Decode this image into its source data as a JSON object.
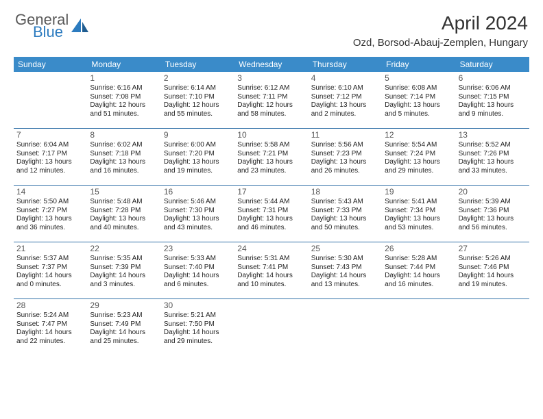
{
  "logo": {
    "text1": "General",
    "text2": "Blue"
  },
  "title": "April 2024",
  "location": "Ozd, Borsod-Abauj-Zemplen, Hungary",
  "colors": {
    "header_bg": "#3a8bc9",
    "week_divider": "#2f6fa6",
    "logo_gray": "#5a5a5a",
    "logo_blue": "#2c7bbf"
  },
  "dow": [
    "Sunday",
    "Monday",
    "Tuesday",
    "Wednesday",
    "Thursday",
    "Friday",
    "Saturday"
  ],
  "weeks": [
    [
      {
        "n": "",
        "sr": "",
        "ss": "",
        "dl": ""
      },
      {
        "n": "1",
        "sr": "Sunrise: 6:16 AM",
        "ss": "Sunset: 7:08 PM",
        "dl": "Daylight: 12 hours and 51 minutes."
      },
      {
        "n": "2",
        "sr": "Sunrise: 6:14 AM",
        "ss": "Sunset: 7:10 PM",
        "dl": "Daylight: 12 hours and 55 minutes."
      },
      {
        "n": "3",
        "sr": "Sunrise: 6:12 AM",
        "ss": "Sunset: 7:11 PM",
        "dl": "Daylight: 12 hours and 58 minutes."
      },
      {
        "n": "4",
        "sr": "Sunrise: 6:10 AM",
        "ss": "Sunset: 7:12 PM",
        "dl": "Daylight: 13 hours and 2 minutes."
      },
      {
        "n": "5",
        "sr": "Sunrise: 6:08 AM",
        "ss": "Sunset: 7:14 PM",
        "dl": "Daylight: 13 hours and 5 minutes."
      },
      {
        "n": "6",
        "sr": "Sunrise: 6:06 AM",
        "ss": "Sunset: 7:15 PM",
        "dl": "Daylight: 13 hours and 9 minutes."
      }
    ],
    [
      {
        "n": "7",
        "sr": "Sunrise: 6:04 AM",
        "ss": "Sunset: 7:17 PM",
        "dl": "Daylight: 13 hours and 12 minutes."
      },
      {
        "n": "8",
        "sr": "Sunrise: 6:02 AM",
        "ss": "Sunset: 7:18 PM",
        "dl": "Daylight: 13 hours and 16 minutes."
      },
      {
        "n": "9",
        "sr": "Sunrise: 6:00 AM",
        "ss": "Sunset: 7:20 PM",
        "dl": "Daylight: 13 hours and 19 minutes."
      },
      {
        "n": "10",
        "sr": "Sunrise: 5:58 AM",
        "ss": "Sunset: 7:21 PM",
        "dl": "Daylight: 13 hours and 23 minutes."
      },
      {
        "n": "11",
        "sr": "Sunrise: 5:56 AM",
        "ss": "Sunset: 7:23 PM",
        "dl": "Daylight: 13 hours and 26 minutes."
      },
      {
        "n": "12",
        "sr": "Sunrise: 5:54 AM",
        "ss": "Sunset: 7:24 PM",
        "dl": "Daylight: 13 hours and 29 minutes."
      },
      {
        "n": "13",
        "sr": "Sunrise: 5:52 AM",
        "ss": "Sunset: 7:26 PM",
        "dl": "Daylight: 13 hours and 33 minutes."
      }
    ],
    [
      {
        "n": "14",
        "sr": "Sunrise: 5:50 AM",
        "ss": "Sunset: 7:27 PM",
        "dl": "Daylight: 13 hours and 36 minutes."
      },
      {
        "n": "15",
        "sr": "Sunrise: 5:48 AM",
        "ss": "Sunset: 7:28 PM",
        "dl": "Daylight: 13 hours and 40 minutes."
      },
      {
        "n": "16",
        "sr": "Sunrise: 5:46 AM",
        "ss": "Sunset: 7:30 PM",
        "dl": "Daylight: 13 hours and 43 minutes."
      },
      {
        "n": "17",
        "sr": "Sunrise: 5:44 AM",
        "ss": "Sunset: 7:31 PM",
        "dl": "Daylight: 13 hours and 46 minutes."
      },
      {
        "n": "18",
        "sr": "Sunrise: 5:43 AM",
        "ss": "Sunset: 7:33 PM",
        "dl": "Daylight: 13 hours and 50 minutes."
      },
      {
        "n": "19",
        "sr": "Sunrise: 5:41 AM",
        "ss": "Sunset: 7:34 PM",
        "dl": "Daylight: 13 hours and 53 minutes."
      },
      {
        "n": "20",
        "sr": "Sunrise: 5:39 AM",
        "ss": "Sunset: 7:36 PM",
        "dl": "Daylight: 13 hours and 56 minutes."
      }
    ],
    [
      {
        "n": "21",
        "sr": "Sunrise: 5:37 AM",
        "ss": "Sunset: 7:37 PM",
        "dl": "Daylight: 14 hours and 0 minutes."
      },
      {
        "n": "22",
        "sr": "Sunrise: 5:35 AM",
        "ss": "Sunset: 7:39 PM",
        "dl": "Daylight: 14 hours and 3 minutes."
      },
      {
        "n": "23",
        "sr": "Sunrise: 5:33 AM",
        "ss": "Sunset: 7:40 PM",
        "dl": "Daylight: 14 hours and 6 minutes."
      },
      {
        "n": "24",
        "sr": "Sunrise: 5:31 AM",
        "ss": "Sunset: 7:41 PM",
        "dl": "Daylight: 14 hours and 10 minutes."
      },
      {
        "n": "25",
        "sr": "Sunrise: 5:30 AM",
        "ss": "Sunset: 7:43 PM",
        "dl": "Daylight: 14 hours and 13 minutes."
      },
      {
        "n": "26",
        "sr": "Sunrise: 5:28 AM",
        "ss": "Sunset: 7:44 PM",
        "dl": "Daylight: 14 hours and 16 minutes."
      },
      {
        "n": "27",
        "sr": "Sunrise: 5:26 AM",
        "ss": "Sunset: 7:46 PM",
        "dl": "Daylight: 14 hours and 19 minutes."
      }
    ],
    [
      {
        "n": "28",
        "sr": "Sunrise: 5:24 AM",
        "ss": "Sunset: 7:47 PM",
        "dl": "Daylight: 14 hours and 22 minutes."
      },
      {
        "n": "29",
        "sr": "Sunrise: 5:23 AM",
        "ss": "Sunset: 7:49 PM",
        "dl": "Daylight: 14 hours and 25 minutes."
      },
      {
        "n": "30",
        "sr": "Sunrise: 5:21 AM",
        "ss": "Sunset: 7:50 PM",
        "dl": "Daylight: 14 hours and 29 minutes."
      },
      {
        "n": "",
        "sr": "",
        "ss": "",
        "dl": ""
      },
      {
        "n": "",
        "sr": "",
        "ss": "",
        "dl": ""
      },
      {
        "n": "",
        "sr": "",
        "ss": "",
        "dl": ""
      },
      {
        "n": "",
        "sr": "",
        "ss": "",
        "dl": ""
      }
    ]
  ]
}
